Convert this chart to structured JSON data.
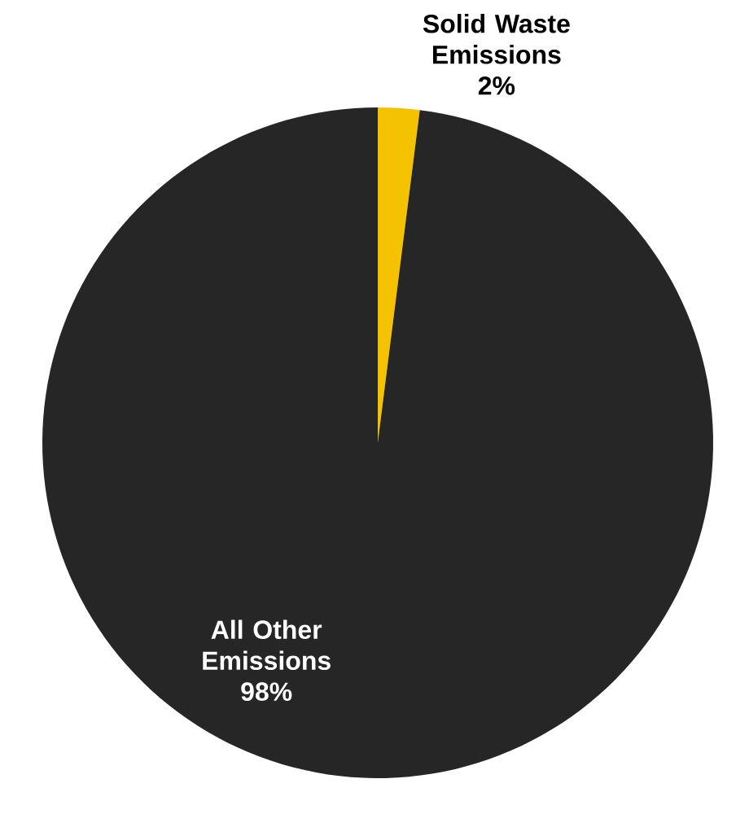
{
  "chart_data": {
    "type": "pie",
    "categories": [
      "Solid Waste Emissions",
      "All Other Emissions"
    ],
    "values": [
      2,
      98
    ],
    "colors": [
      "#f5c200",
      "#262626"
    ],
    "value_labels": [
      "2%",
      "98%"
    ]
  }
}
